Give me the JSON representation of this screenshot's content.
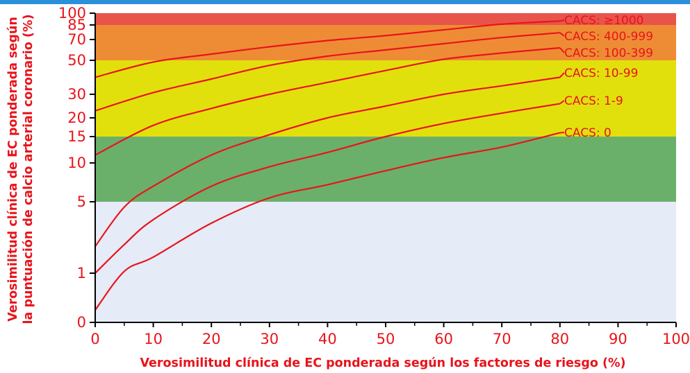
{
  "chart_data": {
    "type": "line",
    "xlabel": "Verosimilitud clínica de EC ponderada según los factores de riesgo (%)",
    "ylabel_line1": "Verosimilitud clínica de EC ponderada según",
    "ylabel_line2": "la puntuación de calcio arterial coronario (%)",
    "x_ticks": [
      0,
      10,
      20,
      30,
      40,
      50,
      60,
      70,
      80,
      90,
      100
    ],
    "y_ticks": [
      {
        "value": 0,
        "label": "0"
      },
      {
        "value": 1,
        "label": "1"
      },
      {
        "value": 5,
        "label": "5"
      },
      {
        "value": 10,
        "label": "10"
      },
      {
        "value": 15,
        "label": "15"
      },
      {
        "value": 20,
        "label": "20"
      },
      {
        "value": 30,
        "label": "30"
      },
      {
        "value": 50,
        "label": "50"
      },
      {
        "value": 70,
        "label": "70"
      },
      {
        "value": 85,
        "label": "85"
      },
      {
        "value": 100,
        "label": "100"
      }
    ],
    "xlim": [
      0,
      100
    ],
    "ylim": [
      0,
      100
    ],
    "y_scale": "non-linear",
    "bands": [
      {
        "from": 0,
        "to": 5,
        "color": "#e5ebf7"
      },
      {
        "from": 5,
        "to": 15,
        "color": "#6ab06a"
      },
      {
        "from": 15,
        "to": 50,
        "color": "#e2e00c"
      },
      {
        "from": 50,
        "to": 85,
        "color": "#ee8c35"
      },
      {
        "from": 85,
        "to": 100,
        "color": "#e8544a"
      }
    ],
    "series": [
      {
        "name": "CACS: ≥1000",
        "x": [
          0,
          10,
          20,
          30,
          40,
          50,
          60,
          70,
          80
        ],
        "y": [
          40,
          49,
          56,
          63,
          69,
          74,
          80,
          86,
          90
        ]
      },
      {
        "name": "CACS: 400-999",
        "x": [
          0,
          10,
          20,
          30,
          40,
          50,
          60,
          70,
          80
        ],
        "y": [
          23,
          31,
          39,
          47,
          54,
          60,
          66,
          72,
          77
        ]
      },
      {
        "name": "CACS: 100-399",
        "x": [
          0,
          10,
          20,
          30,
          40,
          50,
          60,
          70,
          80
        ],
        "y": [
          11.5,
          18,
          24,
          30,
          37,
          44,
          51,
          57,
          62
        ]
      },
      {
        "name": "CACS: 10-99",
        "x": [
          0,
          5,
          10,
          20,
          30,
          40,
          50,
          60,
          70,
          80
        ],
        "y": [
          2.5,
          4.7,
          7,
          11.5,
          15.5,
          20,
          25,
          30,
          35,
          40
        ]
      },
      {
        "name": "CACS: 1-9",
        "x": [
          0,
          5,
          10,
          20,
          30,
          40,
          50,
          60,
          70,
          80
        ],
        "y": [
          1,
          2.6,
          4,
          7,
          9.5,
          12,
          15,
          18.5,
          22,
          26
        ]
      },
      {
        "name": "CACS: 0",
        "x": [
          0,
          5,
          10,
          20,
          30,
          40,
          50,
          60,
          70,
          80
        ],
        "y": [
          0.25,
          1.1,
          1.9,
          3.8,
          5.5,
          7.2,
          9,
          11,
          13,
          16
        ]
      }
    ],
    "line_color": "#e8141b",
    "accent_color": "#2b90d9",
    "frame_color": "#000000"
  }
}
